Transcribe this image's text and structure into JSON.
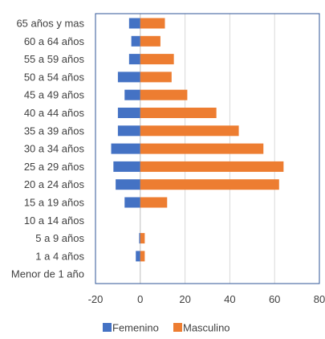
{
  "chart_data": {
    "type": "bar",
    "orientation": "horizontal",
    "categories": [
      "65 años y mas",
      "60 a 64 años",
      "55 a 59 años",
      "50 a 54 años",
      "45 a 49 años",
      "40 a 44 años",
      "35 a 39 años",
      "30 a 34 años",
      "25 a 29 años",
      "20 a 24 años",
      "15 a 19 años",
      "10 a 14 años",
      "5 a 9 años",
      "1 a 4 años",
      "Menor de 1 año"
    ],
    "series": [
      {
        "name": "Femenino",
        "color": "#4472C4",
        "values": [
          -5,
          -4,
          -5,
          -10,
          -7,
          -10,
          -10,
          -13,
          -12,
          -11,
          -7,
          0,
          -0.5,
          -2,
          0
        ]
      },
      {
        "name": "Masculino",
        "color": "#ED7D31",
        "values": [
          11,
          9,
          15,
          14,
          21,
          34,
          44,
          55,
          64,
          62,
          12,
          0,
          2,
          2,
          0
        ]
      }
    ],
    "xlim": [
      -20,
      80
    ],
    "xticks": [
      "-20",
      "0",
      "20",
      "40",
      "60",
      "80"
    ],
    "grid": true,
    "legend_position": "bottom"
  },
  "colors": {
    "frame": "#2F5597",
    "gridline": "#D9D9D9",
    "zero_line": "#BFBFBF"
  }
}
